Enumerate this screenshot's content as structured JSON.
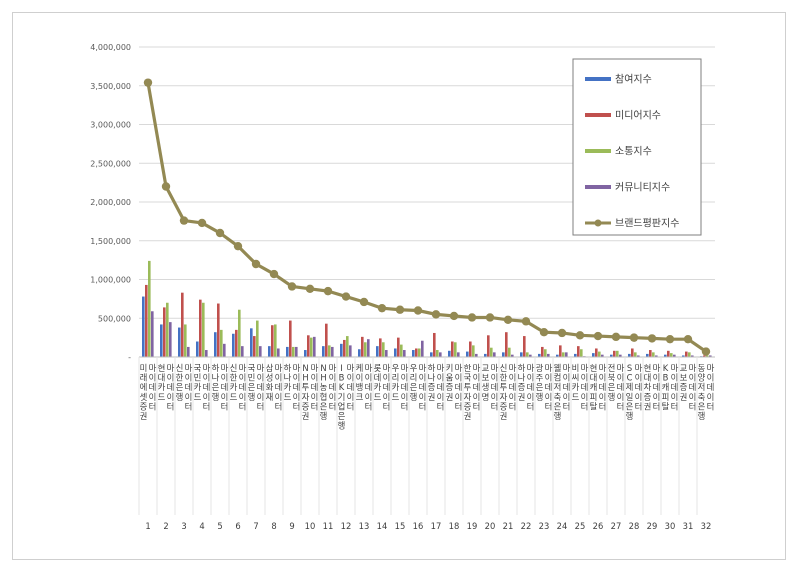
{
  "chart_data": {
    "type": "bar",
    "title": "",
    "xlabel": "",
    "ylabel": "",
    "ylim": [
      0,
      4000000
    ],
    "y_ticks": [
      "-",
      "500,000",
      "1,000,000",
      "1,500,000",
      "2,000,000",
      "2,500,000",
      "3,000,000",
      "3,500,000",
      "4,000,000"
    ],
    "y_tick_values": [
      0,
      500000,
      1000000,
      1500000,
      2000000,
      2500000,
      3000000,
      3500000,
      4000000
    ],
    "grid": true,
    "legend_position": "top-right",
    "categories": [
      "미래에셋증권 마이데이터",
      "현대카드 마이데이터",
      "신한은행 마이데이터",
      "국민카드 마이데이터",
      "하나은행 마이데이터",
      "신한카드 마이데이터",
      "국민은행 마이데이터",
      "삼성화재 마이데이터",
      "하나카드 마이데이터",
      "NH투자증권 마이데이터",
      "NH농협은행 마이데이터",
      "IBK기업은행 마이데이터",
      "케이뱅크 마이데이터",
      "롯데카드 마이데이터",
      "우리카드 마이데이터",
      "우리은행 마이데이터",
      "하나증권 마이데이터",
      "키움증권 마이데이터",
      "한국투자증권 마이데이터",
      "교보생명 마이데이터",
      "신한투자증권 마이데이터",
      "하나증권 마이데이터",
      "광주은행 마이데이터",
      "웰컴저축은행 마이데이터",
      "비씨카드 마이데이터",
      "현대캐피탈 마이데이터",
      "전북은행 마이데이터",
      "SC제일은행 마이데이터",
      "현대차증권 마이데이터",
      "KB캐피탈 마이데이터",
      "교보증권 마이데이터",
      "동양저축은행 마이데이터"
    ],
    "index_labels": [
      "1",
      "2",
      "3",
      "4",
      "5",
      "6",
      "7",
      "8",
      "9",
      "10",
      "11",
      "12",
      "13",
      "14",
      "15",
      "16",
      "17",
      "18",
      "19",
      "20",
      "21",
      "22",
      "23",
      "24",
      "25",
      "26",
      "27",
      "28",
      "29",
      "30",
      "31",
      "32"
    ],
    "series": [
      {
        "name": "참여지수",
        "type": "bar",
        "color": "#4472c4",
        "values": [
          780000,
          420000,
          380000,
          200000,
          320000,
          300000,
          370000,
          140000,
          130000,
          90000,
          140000,
          170000,
          100000,
          140000,
          110000,
          90000,
          60000,
          80000,
          70000,
          40000,
          60000,
          60000,
          40000,
          30000,
          40000,
          50000,
          30000,
          40000,
          40000,
          30000,
          20000,
          10000
        ]
      },
      {
        "name": "미디어지수",
        "type": "bar",
        "color": "#c0504d",
        "values": [
          930000,
          640000,
          830000,
          740000,
          690000,
          350000,
          270000,
          410000,
          470000,
          280000,
          430000,
          220000,
          260000,
          240000,
          250000,
          110000,
          310000,
          200000,
          200000,
          280000,
          320000,
          270000,
          130000,
          150000,
          140000,
          110000,
          80000,
          110000,
          90000,
          80000,
          70000,
          20000
        ]
      },
      {
        "name": "소통지수",
        "type": "bar",
        "color": "#9bbb59",
        "values": [
          1240000,
          700000,
          420000,
          700000,
          350000,
          610000,
          470000,
          420000,
          130000,
          250000,
          150000,
          270000,
          190000,
          190000,
          160000,
          110000,
          90000,
          190000,
          150000,
          120000,
          120000,
          60000,
          100000,
          60000,
          100000,
          70000,
          80000,
          60000,
          60000,
          50000,
          60000,
          20000
        ]
      },
      {
        "name": "커뮤니티지수",
        "type": "bar",
        "color": "#8064a2",
        "values": [
          590000,
          450000,
          130000,
          90000,
          170000,
          140000,
          140000,
          110000,
          130000,
          260000,
          130000,
          150000,
          230000,
          90000,
          90000,
          210000,
          60000,
          60000,
          40000,
          60000,
          30000,
          30000,
          40000,
          60000,
          10000,
          30000,
          30000,
          20000,
          20000,
          30000,
          20000,
          20000
        ]
      },
      {
        "name": "브랜드평판지수",
        "type": "line",
        "color": "#938953",
        "values": [
          3540000,
          2200000,
          1760000,
          1730000,
          1600000,
          1430000,
          1200000,
          1070000,
          910000,
          880000,
          850000,
          780000,
          710000,
          630000,
          610000,
          600000,
          550000,
          530000,
          510000,
          510000,
          480000,
          460000,
          320000,
          310000,
          280000,
          270000,
          260000,
          250000,
          240000,
          230000,
          230000,
          70000
        ]
      }
    ]
  }
}
